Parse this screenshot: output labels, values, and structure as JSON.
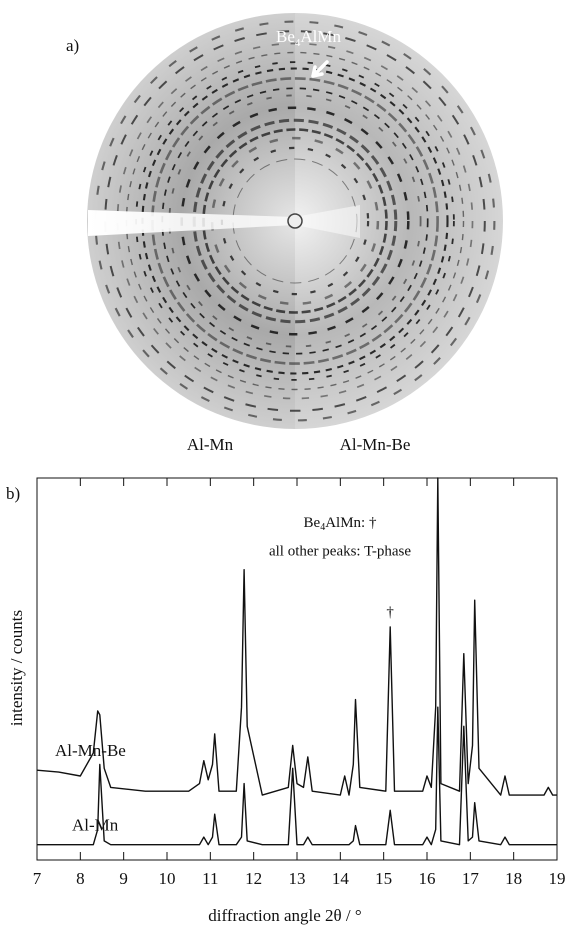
{
  "panel_a": {
    "label": "a)",
    "arrow_label": [
      "Be",
      "4",
      "AlMn"
    ],
    "left_label": "Al-Mn",
    "right_label": "Al-Mn-Be"
  },
  "chart_data": {
    "type": "line",
    "panel_label": "b)",
    "x_label": "diffraction angle 2θ / °",
    "y_label": "intensity  / counts",
    "annotation_lines": [
      [
        "Be",
        "4",
        "AlMn: †"
      ],
      "all other peaks: T-phase"
    ],
    "peak_marker": {
      "text": "†",
      "x": 15.15
    },
    "x": [
      7,
      7.5,
      8,
      8.3,
      8.4,
      8.45,
      8.55,
      8.7,
      9.5,
      10.5,
      10.75,
      10.85,
      10.95,
      11.05,
      11.1,
      11.2,
      11.6,
      11.72,
      11.78,
      11.85,
      12.2,
      12.8,
      12.9,
      13.0,
      13.15,
      13.25,
      13.35,
      14.0,
      14.1,
      14.2,
      14.3,
      14.35,
      14.45,
      15.05,
      15.15,
      15.25,
      15.9,
      16.0,
      16.1,
      16.2,
      16.25,
      16.32,
      16.75,
      16.85,
      16.95,
      17.05,
      17.1,
      17.2,
      17.7,
      17.8,
      17.9,
      18.7,
      18.8,
      18.9,
      19
    ],
    "series": [
      {
        "name": "Al-Mn-Be",
        "color": "#111111",
        "values": [
          23.5,
          23,
          22,
          28,
          39,
          38,
          24,
          19,
          18,
          18,
          20,
          26,
          21,
          25,
          33,
          18,
          18,
          40,
          76,
          35,
          17,
          19,
          30,
          20,
          19,
          27,
          18,
          17,
          22,
          17,
          25,
          42,
          19,
          18,
          61,
          18,
          18,
          22,
          19,
          40,
          100,
          20,
          18,
          54,
          20,
          30,
          68,
          24,
          17,
          22,
          17,
          17,
          19,
          17,
          17
        ]
      },
      {
        "name": "Al-Mn",
        "color": "#111111",
        "values": [
          4,
          4,
          4,
          4,
          8,
          25,
          5,
          4,
          4,
          4,
          4,
          6,
          4,
          6,
          12,
          4,
          4,
          6,
          20,
          5,
          4,
          4,
          24,
          4,
          4,
          6,
          4,
          4,
          4,
          4,
          5,
          9,
          4,
          4,
          13,
          4,
          4,
          6,
          4,
          8,
          40,
          5,
          4,
          35,
          5,
          6,
          15,
          5,
          4,
          6,
          4,
          4,
          4,
          4,
          4
        ]
      }
    ],
    "xlim": [
      7,
      19
    ],
    "xticks": [
      7,
      8,
      9,
      10,
      11,
      12,
      13,
      14,
      15,
      16,
      17,
      18,
      19
    ],
    "ylim": [
      0,
      100
    ]
  }
}
